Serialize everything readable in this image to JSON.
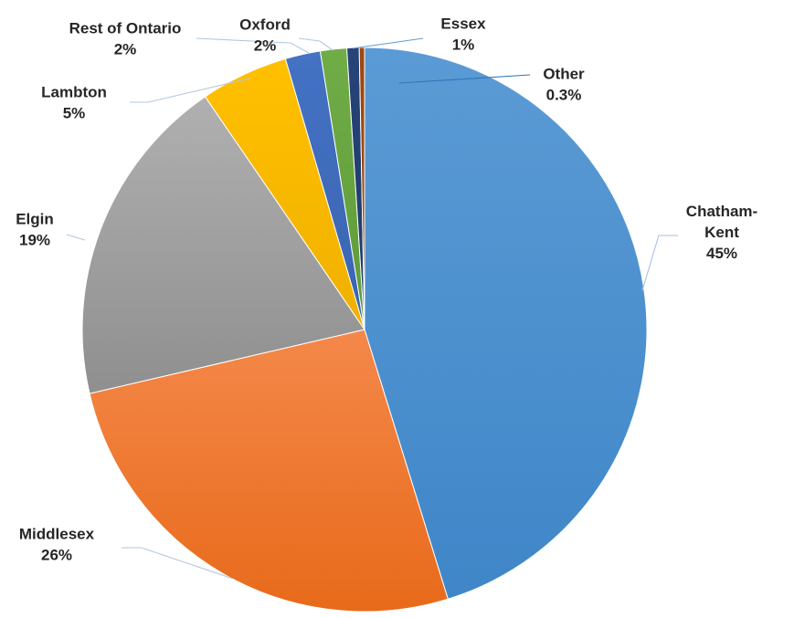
{
  "chart_data": {
    "type": "pie",
    "title": "",
    "slices": [
      {
        "name": "Chatham-",
        "name2": "Kent",
        "value": 45,
        "label": "45%",
        "color": "#5b9bd5",
        "color_dark": "#3f86c8",
        "leader_color": "#a6c2e3"
      },
      {
        "name": "Middlesex",
        "value": 26,
        "label": "26%",
        "color": "#f4884a",
        "color_dark": "#e86a1a",
        "leader_color": "#b4c7dc"
      },
      {
        "name": "Elgin",
        "value": 19,
        "label": "19%",
        "color": "#b0b0b0",
        "color_dark": "#8f8f8f",
        "leader_color": "#b4c7dc"
      },
      {
        "name": "Lambton",
        "value": 5,
        "label": "5%",
        "color": "#ffc000",
        "color_dark": "#f0b000",
        "leader_color": "#b4c7dc"
      },
      {
        "name": "Rest of Ontario",
        "value": 2,
        "label": "2%",
        "color": "#4472c4",
        "color_dark": "#3a64b0",
        "leader_color": "#b4c7dc"
      },
      {
        "name": "Oxford",
        "value": 1.5,
        "label": "2%",
        "color": "#70ad47",
        "color_dark": "#5e9a38",
        "leader_color": "#b4c7dc"
      },
      {
        "name": "Essex",
        "value": 0.7,
        "label": "1%",
        "color": "#264478",
        "color_dark": "#1e3a68",
        "leader_color": "#5b9bd5"
      },
      {
        "name": "Other",
        "value": 0.3,
        "label": "0.3%",
        "color": "#9e480e",
        "color_dark": "#9e480e",
        "leader_color": "#2e75b6"
      }
    ],
    "start_angle_deg": 0,
    "direction": "clockwise",
    "legend": "none",
    "data_labels": "outside-with-leader-lines"
  }
}
